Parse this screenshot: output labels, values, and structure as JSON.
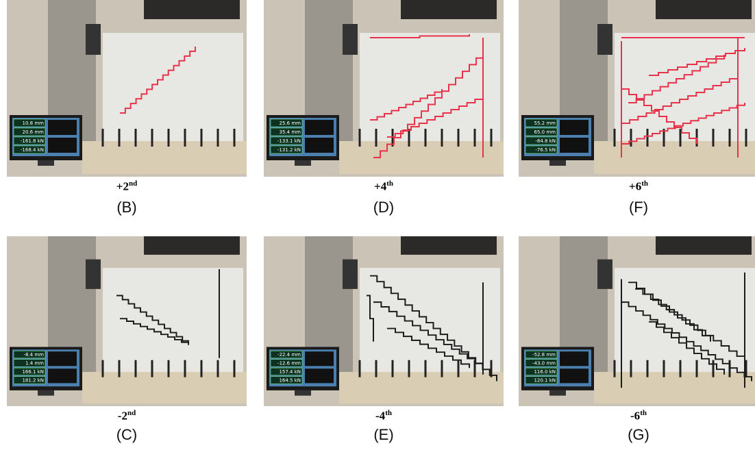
{
  "panels": [
    {
      "caption": {
        "text": "+2",
        "sup": "nd"
      },
      "label": "(B)",
      "readings": [
        "10.8 mm",
        "20.6 mm",
        "-161.8 kN",
        "-168.4 kN"
      ]
    },
    {
      "caption": {
        "text": "+4",
        "sup": "th"
      },
      "label": "(D)",
      "readings": [
        "25.6 mm",
        "35.4 mm",
        "-133.1 kN",
        "-131.2 kN"
      ]
    },
    {
      "caption": {
        "text": "+6",
        "sup": "th"
      },
      "label": "(F)",
      "readings": [
        "55.2 mm",
        "65.0 mm",
        "-84.8 kN",
        "-76.5 kN"
      ]
    },
    {
      "caption": {
        "text": "-2",
        "sup": "nd"
      },
      "label": "(C)",
      "readings": [
        "-8.4 mm",
        "1.4 mm",
        "166.1 kN",
        "181.2 kN"
      ]
    },
    {
      "caption": {
        "text": "-4",
        "sup": "th"
      },
      "label": "(E)",
      "readings": [
        "-22.4 mm",
        "-12.6 mm",
        "157.4 kN",
        "164.5 kN"
      ]
    },
    {
      "caption": {
        "text": "-6",
        "sup": "th"
      },
      "label": "(G)",
      "readings": [
        "-52.8 mm",
        "-43.0 mm",
        "116.0 kN",
        "120.1 kN"
      ]
    }
  ]
}
